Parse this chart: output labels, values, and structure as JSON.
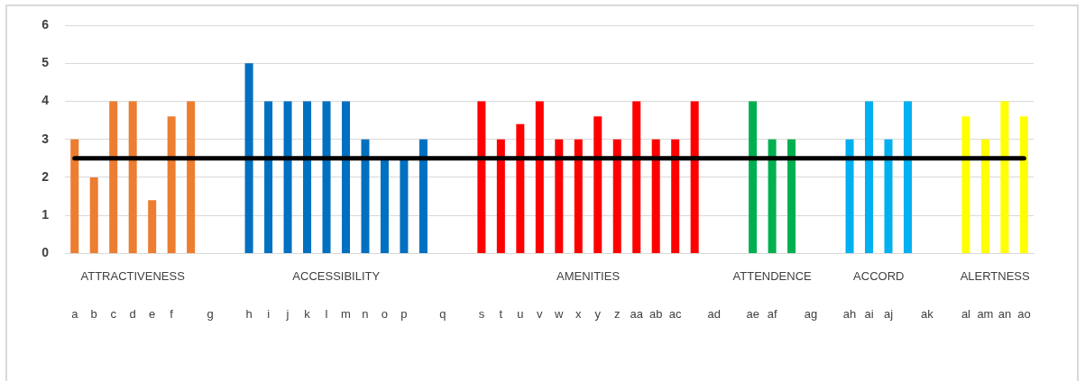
{
  "chart_data": {
    "type": "bar",
    "categories": [
      "a",
      "b",
      "c",
      "d",
      "e",
      "f",
      null,
      "g",
      null,
      "h",
      "i",
      "j",
      "k",
      "l",
      "m",
      "n",
      "o",
      "p",
      null,
      "q",
      null,
      "s",
      "t",
      "u",
      "v",
      "w",
      "x",
      "y",
      "z",
      "aa",
      "ab",
      "ac",
      null,
      "ad",
      null,
      "ae",
      "af",
      null,
      "ag",
      null,
      "ah",
      "ai",
      "aj",
      null,
      "ak",
      null,
      "al",
      "am",
      "an",
      "ao"
    ],
    "values": [
      3,
      2,
      4,
      4,
      1.4,
      3.6,
      4,
      null,
      null,
      5,
      4,
      4,
      4,
      4,
      4,
      3,
      2.5,
      2.5,
      3,
      null,
      null,
      4,
      3,
      3.4,
      4,
      3,
      3,
      3.6,
      3,
      4,
      3,
      3,
      4,
      null,
      null,
      4,
      3,
      3,
      null,
      null,
      3,
      4,
      3,
      4,
      null,
      null,
      3.6,
      3,
      4,
      3.6
    ],
    "colors": [
      "#ed7d31",
      "#ed7d31",
      "#ed7d31",
      "#ed7d31",
      "#ed7d31",
      "#ed7d31",
      "#ed7d31",
      "#ed7d31",
      "#ed7d31",
      "#0070c0",
      "#0070c0",
      "#0070c0",
      "#0070c0",
      "#0070c0",
      "#0070c0",
      "#0070c0",
      "#0070c0",
      "#0070c0",
      "#0070c0",
      "#0070c0",
      "#0070c0",
      "#ff0000",
      "#ff0000",
      "#ff0000",
      "#ff0000",
      "#ff0000",
      "#ff0000",
      "#ff0000",
      "#ff0000",
      "#ff0000",
      "#ff0000",
      "#ff0000",
      "#ff0000",
      "#ff0000",
      "#ff0000",
      "#00b050",
      "#00b050",
      "#00b050",
      "#00b050",
      "#00b050",
      "#00b0f0",
      "#00b0f0",
      "#00b0f0",
      "#00b0f0",
      "#00b0f0",
      "#00b0f0",
      "#ffff00",
      "#ffff00",
      "#ffff00",
      "#ffff00"
    ],
    "ylim": [
      0,
      6
    ],
    "yticks": [
      0,
      1,
      2,
      3,
      4,
      5,
      6
    ],
    "grid": "y",
    "legend": false,
    "ref_lines": [
      {
        "axis": "y",
        "value": 2.5,
        "color": "#000000"
      }
    ],
    "annotations": [
      "ATTRACTIVENESS",
      "ACCESSIBILITY",
      "AMENITIES",
      "ATTENDENCE",
      "ACCORD",
      "ALERTNESS"
    ]
  }
}
